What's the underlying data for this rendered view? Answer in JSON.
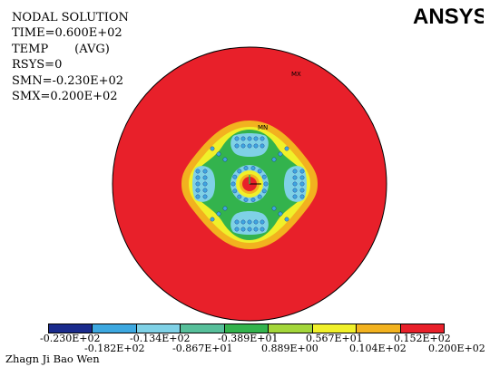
{
  "window": {
    "info_lines": [
      "NODAL SOLUTION",
      "TIME=0.600E+02",
      "TEMP       (AVG)",
      "RSYS=0",
      "SMN=-0.230E+02",
      "SMX=0.200E+02"
    ],
    "logo_text": "ANSYS",
    "markers": {
      "max": "MX",
      "min": "MN"
    },
    "footer": "Zhagn Ji Bao Wen"
  },
  "legend": {
    "colors": [
      "#1a2b8c",
      "#3da8e0",
      "#7fd1e6",
      "#57bf9a",
      "#33b34d",
      "#a3d63a",
      "#f0f02a",
      "#f2b21f",
      "#e8202a"
    ],
    "labels_top": [
      "-0.230E+02",
      "-0.134E+02",
      "-0.389E+01",
      "0.567E+01",
      "0.152E+02"
    ],
    "labels_bottom": [
      "-0.182E+02",
      "-0.867E+01",
      "0.889E+00",
      "0.104E+02",
      "0.200E+02"
    ]
  }
}
